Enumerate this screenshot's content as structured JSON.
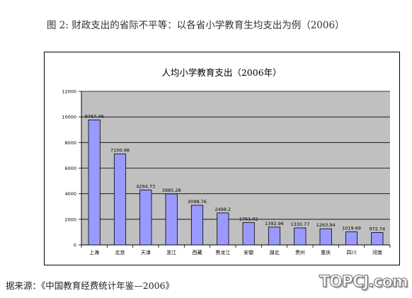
{
  "page": {
    "title": "图 2: 财政支出的省际不平等：以各省小学教育生均支出为例（2006）",
    "source": "据来源：《中国教育经费统计年鉴—2006》",
    "watermark": "TOPCJ.com"
  },
  "colors": {
    "plot_background": "#c0c0c0",
    "bar_fill": "#9999ff",
    "bar_stroke": "#000000",
    "gridline": "#000000"
  },
  "chart_data": {
    "type": "bar",
    "title": "人均小学教育支出（2006年）",
    "xlabel": "",
    "ylabel": "",
    "ylim": [
      0,
      12000
    ],
    "yticks": [
      0,
      2000,
      4000,
      6000,
      8000,
      10000,
      12000
    ],
    "grid": true,
    "legend": "none",
    "categories": [
      "上海",
      "北京",
      "天津",
      "浙江",
      "西藏",
      "黑龙江",
      "安徽",
      "湖北",
      "贵州",
      "重庆",
      "四川",
      "河南"
    ],
    "values": [
      9767.46,
      7100.98,
      4294.73,
      3985.28,
      3098.76,
      2498.2,
      1751.02,
      1392.96,
      1330.77,
      1263.94,
      1019.69,
      972.74
    ],
    "value_labels": [
      "9767.46",
      "7100.98",
      "4294.73",
      "3985.28",
      "3098.76",
      "2498.2",
      "1751.02",
      "1392.96",
      "1330.77",
      "1263.94",
      "1019.69",
      "972.74"
    ]
  }
}
